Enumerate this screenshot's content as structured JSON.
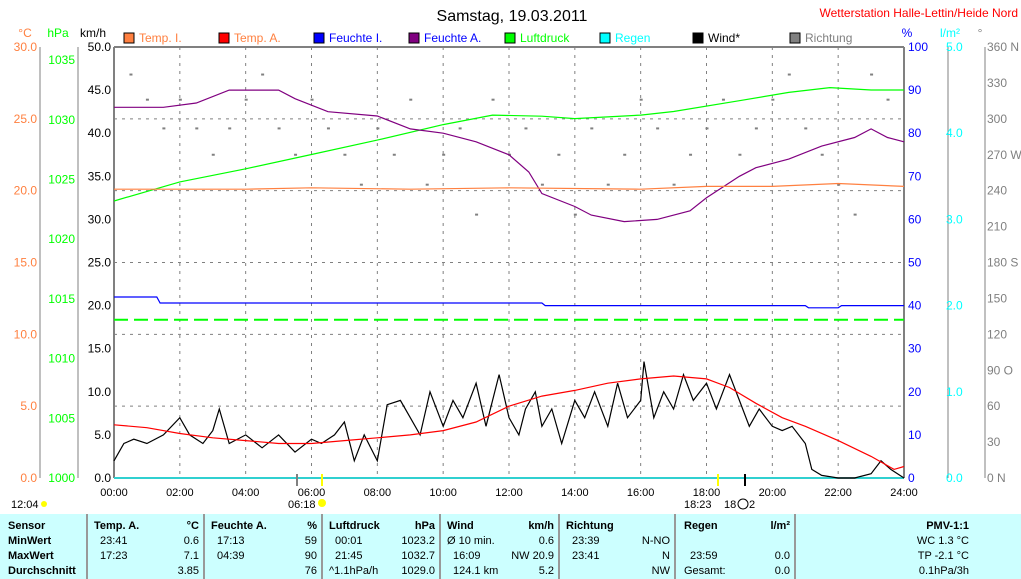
{
  "title": "Samstag, 19.03.2011",
  "station": "Wetterstation Halle-Lettin/Heide Nord",
  "legend": [
    {
      "label": "Temp. I.",
      "color": "#ff8040",
      "text_color": "#ff8040"
    },
    {
      "label": "Temp. A.",
      "color": "#ff0000",
      "text_color": "#ff8040"
    },
    {
      "label": "Feuchte I.",
      "color": "#0000ff",
      "text_color": "#0000ff"
    },
    {
      "label": "Feuchte A.",
      "color": "#800080",
      "text_color": "#0000ff"
    },
    {
      "label": "Luftdruck",
      "color": "#00ff00",
      "text_color": "#00ff00"
    },
    {
      "label": "Regen",
      "color": "#00ffff",
      "text_color": "#00ffff"
    },
    {
      "label": "Wind*",
      "color": "#000000",
      "text_color": "#000000"
    },
    {
      "label": "Richtung",
      "color": "#808080",
      "text_color": "#808080"
    }
  ],
  "axes": {
    "c_unit": "°C",
    "hpa_unit": "hPa",
    "kmh_unit": "km/h",
    "pct_unit": "%",
    "rain_unit": "l/m²",
    "deg_unit": "°",
    "c_ticks": [
      "0.0",
      "5.0",
      "10.0",
      "15.0",
      "20.0",
      "25.0",
      "30.0"
    ],
    "hpa_ticks": [
      "1000",
      "1005",
      "1010",
      "1015",
      "1020",
      "1025",
      "1030",
      "1035"
    ],
    "kmh_ticks": [
      "0.0",
      "5.0",
      "10.0",
      "15.0",
      "20.0",
      "25.0",
      "30.0",
      "35.0",
      "40.0",
      "45.0",
      "50.0"
    ],
    "pct_ticks": [
      "0",
      "10",
      "20",
      "30",
      "40",
      "50",
      "60",
      "70",
      "80",
      "90",
      "100"
    ],
    "rain_ticks": [
      "0.0",
      "1.0",
      "2.0",
      "3.0",
      "4.0",
      "5.0"
    ],
    "deg_ticks": [
      "0 N",
      "30",
      "60",
      "90 O",
      "120",
      "150",
      "180 S",
      "210",
      "240",
      "270 W",
      "300",
      "330",
      "360 N"
    ],
    "time_ticks": [
      "00:00",
      "02:00",
      "04:00",
      "06:00",
      "08:00",
      "10:00",
      "12:00",
      "14:00",
      "16:00",
      "18:00",
      "20:00",
      "22:00",
      "24:00"
    ]
  },
  "astro": {
    "moon_set": "12:04",
    "sunrise": "06:18",
    "sunset": "18:23",
    "moon_rise_a": "18",
    "moon_rise_b": "2"
  },
  "chart_data": {
    "type": "line",
    "title": "Samstag, 19.03.2011",
    "x_range": [
      0,
      24
    ],
    "ranges": {
      "temp": [
        0,
        30
      ],
      "hpa": [
        1000,
        1036.1
      ],
      "kmh": [
        0,
        50
      ],
      "pct": [
        0,
        100
      ],
      "rain": [
        0,
        5
      ],
      "deg": [
        0,
        360
      ]
    },
    "reference_pressure": 1013.25,
    "series": [
      {
        "name": "Temp. I.",
        "axis": "temp",
        "color": "#ff8040",
        "points": [
          [
            0,
            20.1
          ],
          [
            4,
            20.1
          ],
          [
            6,
            20.2
          ],
          [
            9,
            20.1
          ],
          [
            12,
            20.2
          ],
          [
            16,
            20.1
          ],
          [
            18,
            20.3
          ],
          [
            20,
            20.3
          ],
          [
            22,
            20.5
          ],
          [
            24,
            20.3
          ]
        ]
      },
      {
        "name": "Temp. A.",
        "axis": "temp",
        "color": "#ff0000",
        "points": [
          [
            0,
            3.7
          ],
          [
            1,
            3.5
          ],
          [
            2,
            3.1
          ],
          [
            3,
            2.8
          ],
          [
            4,
            2.6
          ],
          [
            5,
            2.4
          ],
          [
            6,
            2.4
          ],
          [
            7,
            2.6
          ],
          [
            8,
            2.8
          ],
          [
            9,
            3.0
          ],
          [
            10,
            3.3
          ],
          [
            11,
            3.9
          ],
          [
            12,
            5.0
          ],
          [
            13,
            5.7
          ],
          [
            14,
            6.1
          ],
          [
            15,
            6.6
          ],
          [
            16,
            6.9
          ],
          [
            17,
            7.1
          ],
          [
            18,
            6.9
          ],
          [
            18.7,
            6.3
          ],
          [
            19.5,
            5.2
          ],
          [
            20.3,
            4.2
          ],
          [
            21,
            3.6
          ],
          [
            22,
            2.6
          ],
          [
            23,
            1.5
          ],
          [
            23.7,
            0.6
          ],
          [
            24,
            0.8
          ]
        ]
      },
      {
        "name": "Feuchte I.",
        "axis": "pct",
        "color": "#0000ff",
        "points": [
          [
            0,
            42
          ],
          [
            1.3,
            42
          ],
          [
            1.4,
            40.6
          ],
          [
            13,
            40.6
          ],
          [
            13.1,
            40
          ],
          [
            21,
            40
          ],
          [
            21.1,
            39.5
          ],
          [
            22,
            39.5
          ],
          [
            22.1,
            40
          ],
          [
            24,
            40
          ]
        ]
      },
      {
        "name": "Feuchte A.",
        "axis": "pct",
        "color": "#800080",
        "points": [
          [
            0,
            86
          ],
          [
            1.5,
            86
          ],
          [
            2.5,
            87
          ],
          [
            3.5,
            90
          ],
          [
            5,
            90
          ],
          [
            5.5,
            88
          ],
          [
            6.5,
            85
          ],
          [
            8,
            84
          ],
          [
            9,
            81
          ],
          [
            10,
            80
          ],
          [
            11,
            78
          ],
          [
            12,
            75
          ],
          [
            12.6,
            71
          ],
          [
            13,
            66
          ],
          [
            14,
            63
          ],
          [
            14.5,
            61
          ],
          [
            15.5,
            59.5
          ],
          [
            16.5,
            60
          ],
          [
            17.5,
            62
          ],
          [
            18,
            65
          ],
          [
            19,
            70
          ],
          [
            19.5,
            72
          ],
          [
            20.5,
            74
          ],
          [
            21.5,
            77
          ],
          [
            22.5,
            79
          ],
          [
            23,
            81
          ],
          [
            23.5,
            79
          ],
          [
            24,
            78
          ]
        ]
      },
      {
        "name": "Luftdruck",
        "axis": "hpa",
        "color": "#00ff00",
        "points": [
          [
            0,
            1023.2
          ],
          [
            2,
            1024.8
          ],
          [
            4,
            1025.9
          ],
          [
            6,
            1027.1
          ],
          [
            8,
            1028.3
          ],
          [
            10,
            1029.6
          ],
          [
            11.5,
            1030.4
          ],
          [
            13,
            1030.3
          ],
          [
            14,
            1030.1
          ],
          [
            16,
            1030.4
          ],
          [
            17,
            1030.7
          ],
          [
            19,
            1031.6
          ],
          [
            20.5,
            1032.3
          ],
          [
            21.75,
            1032.7
          ],
          [
            23,
            1032.5
          ],
          [
            24,
            1032.5
          ]
        ]
      },
      {
        "name": "Regen",
        "axis": "rain",
        "color": "#00ffff",
        "points": [
          [
            0,
            0
          ],
          [
            24,
            0
          ]
        ]
      },
      {
        "name": "Wind*",
        "axis": "kmh",
        "color": "#000000",
        "points": [
          [
            0,
            2
          ],
          [
            0.3,
            4
          ],
          [
            0.6,
            4.5
          ],
          [
            1,
            4
          ],
          [
            1.5,
            5
          ],
          [
            2,
            7
          ],
          [
            2.3,
            5
          ],
          [
            2.7,
            4
          ],
          [
            3,
            5.5
          ],
          [
            3.2,
            8
          ],
          [
            3.5,
            4
          ],
          [
            4,
            5
          ],
          [
            4.5,
            3.5
          ],
          [
            5,
            5
          ],
          [
            5.5,
            3
          ],
          [
            6,
            4.5
          ],
          [
            6.3,
            4
          ],
          [
            6.7,
            5
          ],
          [
            7,
            6.5
          ],
          [
            7.3,
            2
          ],
          [
            7.6,
            5
          ],
          [
            8,
            2
          ],
          [
            8.3,
            8.5
          ],
          [
            8.7,
            9
          ],
          [
            9,
            7
          ],
          [
            9.3,
            5
          ],
          [
            9.6,
            10
          ],
          [
            10,
            6
          ],
          [
            10.3,
            9
          ],
          [
            10.6,
            7
          ],
          [
            11,
            11
          ],
          [
            11.3,
            6
          ],
          [
            11.7,
            12
          ],
          [
            12,
            7
          ],
          [
            12.3,
            5
          ],
          [
            12.5,
            8
          ],
          [
            12.8,
            10
          ],
          [
            13,
            6
          ],
          [
            13.3,
            8
          ],
          [
            13.6,
            4
          ],
          [
            14,
            9
          ],
          [
            14.3,
            7
          ],
          [
            14.6,
            10
          ],
          [
            15,
            6
          ],
          [
            15.3,
            11
          ],
          [
            15.6,
            7
          ],
          [
            16,
            9
          ],
          [
            16.1,
            13.5
          ],
          [
            16.4,
            7
          ],
          [
            16.7,
            10
          ],
          [
            17,
            8
          ],
          [
            17.3,
            12
          ],
          [
            17.6,
            9
          ],
          [
            18,
            11
          ],
          [
            18.3,
            8
          ],
          [
            18.7,
            12
          ],
          [
            19,
            9
          ],
          [
            19.3,
            6
          ],
          [
            19.6,
            8
          ],
          [
            20,
            6
          ],
          [
            20.3,
            5.5
          ],
          [
            20.6,
            6
          ],
          [
            21,
            4
          ],
          [
            21.2,
            1
          ],
          [
            21.5,
            0.3
          ],
          [
            22,
            0
          ],
          [
            22.5,
            0
          ],
          [
            23,
            0.5
          ],
          [
            23.3,
            2
          ],
          [
            23.6,
            1
          ],
          [
            24,
            0
          ]
        ]
      }
    ],
    "direction_points": [
      [
        0.5,
        337
      ],
      [
        1,
        316
      ],
      [
        1.5,
        292
      ],
      [
        2,
        316
      ],
      [
        2.5,
        292
      ],
      [
        3,
        270
      ],
      [
        3.5,
        292
      ],
      [
        4,
        316
      ],
      [
        4.5,
        337
      ],
      [
        5,
        292
      ],
      [
        5.5,
        270
      ],
      [
        6,
        316
      ],
      [
        6.5,
        292
      ],
      [
        7,
        270
      ],
      [
        7.5,
        245
      ],
      [
        8,
        292
      ],
      [
        8.5,
        270
      ],
      [
        9,
        316
      ],
      [
        9.5,
        245
      ],
      [
        10,
        270
      ],
      [
        10.5,
        292
      ],
      [
        11,
        220
      ],
      [
        11.5,
        316
      ],
      [
        12,
        270
      ],
      [
        12.5,
        292
      ],
      [
        13,
        245
      ],
      [
        13.5,
        270
      ],
      [
        14,
        220
      ],
      [
        14.5,
        292
      ],
      [
        15,
        245
      ],
      [
        15.5,
        270
      ],
      [
        16,
        316
      ],
      [
        16.5,
        292
      ],
      [
        17,
        245
      ],
      [
        17.5,
        270
      ],
      [
        18,
        292
      ],
      [
        18.5,
        316
      ],
      [
        19,
        270
      ],
      [
        19.5,
        292
      ],
      [
        20,
        316
      ],
      [
        20.5,
        337
      ],
      [
        21,
        292
      ],
      [
        21.5,
        270
      ],
      [
        22,
        245
      ],
      [
        22.5,
        220
      ],
      [
        23,
        337
      ],
      [
        23.5,
        316
      ]
    ]
  },
  "table": {
    "sensor": {
      "h": "Sensor",
      "min": "MinWert",
      "max": "MaxWert",
      "avg": "Durchschnitt"
    },
    "temp": {
      "h": "Temp. A.",
      "u": "°C",
      "min_t": "23:41",
      "min_v": "0.6",
      "max_t": "17:23",
      "max_v": "7.1",
      "avg_v": "3.85"
    },
    "hum": {
      "h": "Feuchte A.",
      "u": "%",
      "min_t": "17:13",
      "min_v": "59",
      "max_t": "04:39",
      "max_v": "90",
      "avg_v": "76"
    },
    "press": {
      "h": "Luftdruck",
      "u": "hPa",
      "min_t": "00:01",
      "min_v": "1023.2",
      "max_t": "21:45",
      "max_v": "1032.7",
      "avg_t": "^1.1hPa/h",
      "avg_v": "1029.0"
    },
    "wind": {
      "h": "Wind",
      "u": "km/h",
      "min_t": "Ø 10 min.",
      "min_v": "0.6",
      "max_t": "16:09",
      "max_v": "NW 20.9",
      "avg_t": "124.1 km",
      "avg_v": "5.2"
    },
    "dir": {
      "h": "Richtung",
      "min_t": "23:39",
      "min_v": "N-NO",
      "max_t": "23:41",
      "max_v": "N",
      "avg_v": "NW"
    },
    "rain": {
      "h": "Regen",
      "u": "l/m²",
      "max_t": "23:59",
      "max_v": "0.0",
      "avg_t": "Gesamt:",
      "avg_v": "0.0"
    },
    "pmv": {
      "h": "PMV-1:1",
      "l1": "WC 1.3 °C",
      "l2": "TP -2.1 °C",
      "l3": "0.1hPa/3h"
    }
  }
}
